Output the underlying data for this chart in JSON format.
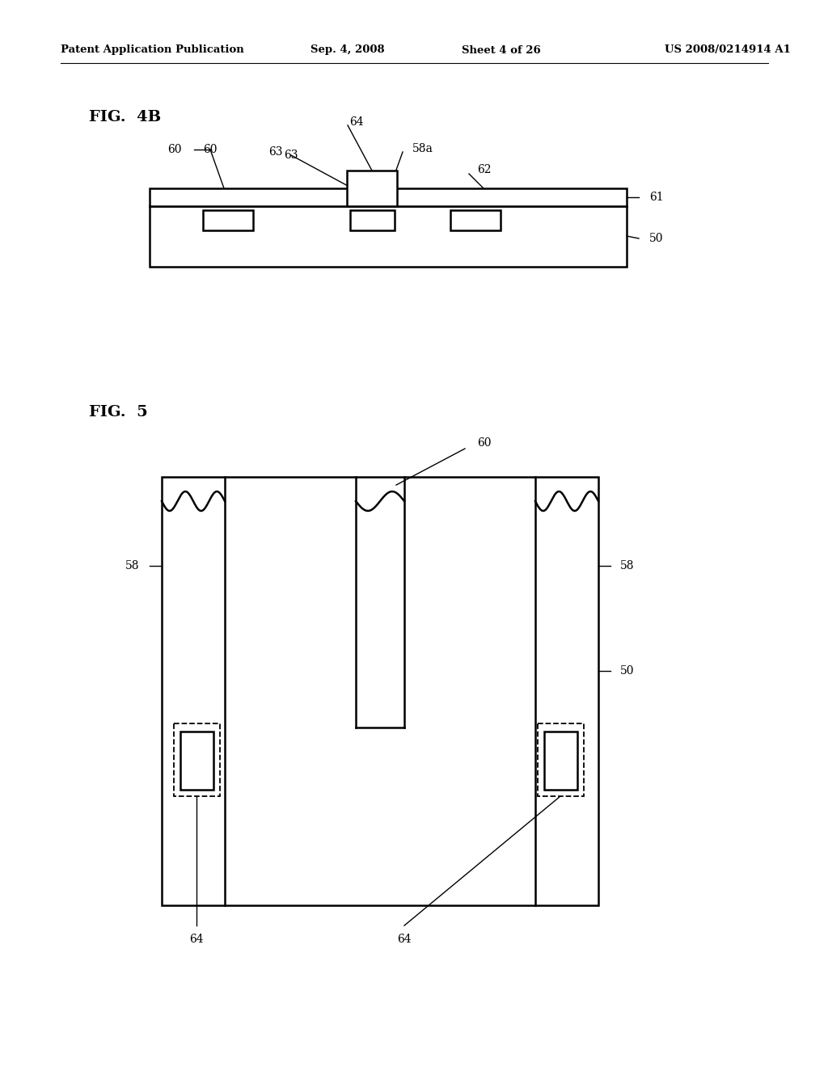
{
  "bg_color": "#ffffff",
  "line_color": "#000000",
  "header_text": "Patent Application Publication",
  "header_date": "Sep. 4, 2008",
  "header_sheet": "Sheet 4 of 26",
  "header_patent": "US 2008/0214914 A1",
  "fig4b_label": "FIG.  4B",
  "fig5_label": "FIG.  5"
}
